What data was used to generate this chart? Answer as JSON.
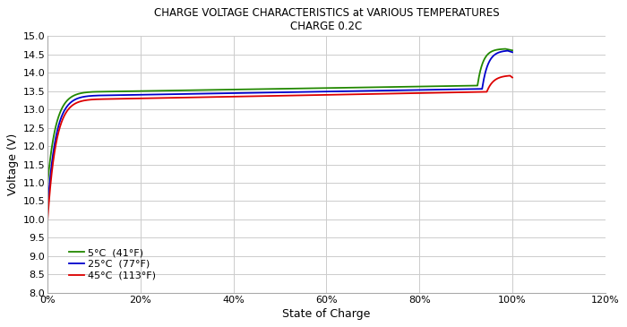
{
  "title_line1": "CHARGE VOLTAGE CHARACTERISTICS at VARIOUS TEMPERATURES",
  "title_line2": "CHARGE 0.2C",
  "xlabel": "State of Charge",
  "ylabel": "Voltage (V)",
  "ylim": [
    8.0,
    15.0
  ],
  "xlim": [
    0.0,
    1.2
  ],
  "yticks": [
    8.0,
    8.5,
    9.0,
    9.5,
    10.0,
    10.5,
    11.0,
    11.5,
    12.0,
    12.5,
    13.0,
    13.5,
    14.0,
    14.5,
    15.0
  ],
  "xticks": [
    0.0,
    0.2,
    0.4,
    0.6,
    0.8,
    1.0,
    1.2
  ],
  "colors": {
    "45C": "#dd0000",
    "25C": "#0000cc",
    "5C": "#228800"
  },
  "legend": [
    {
      "label": "45°C  (113°F)",
      "color": "#dd0000"
    },
    {
      "label": "25°C  (77°F)",
      "color": "#0000cc"
    },
    {
      "label": "5°C  (41°F)",
      "color": "#228800"
    }
  ],
  "background_color": "#ffffff",
  "grid_color": "#cccccc"
}
